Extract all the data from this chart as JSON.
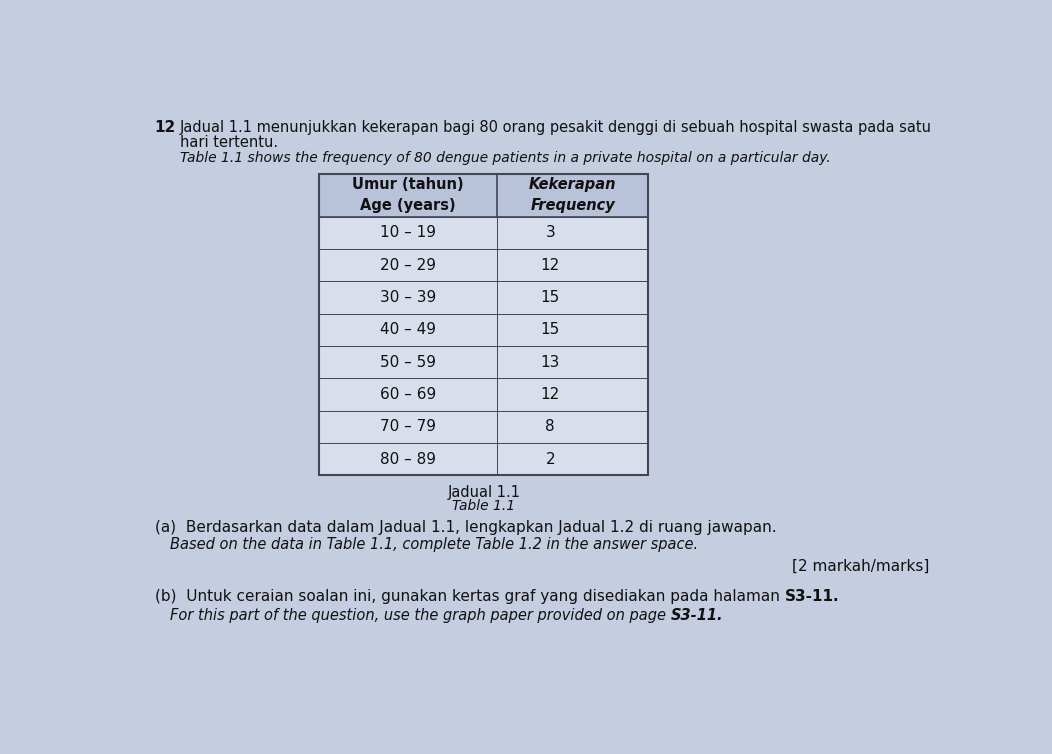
{
  "question_number": "12",
  "intro_text_line1": "Jadual 1.1 menunjukkan kekerapan bagi 80 orang pesakit denggi di sebuah hospital swasta pada satu",
  "intro_text_line2": "hari tertentu.",
  "intro_text_italic": "Table 1.1 shows the frequency of 80 dengue patients in a private hospital on a particular day.",
  "col1_header_line1": "Umur (tahun)",
  "col1_header_line2": "Age (years)",
  "col2_header_line1": "Kekerapan",
  "col2_header_line2": "Frequency",
  "age_groups": [
    "10 – 19",
    "20 – 29",
    "30 – 39",
    "40 – 49",
    "50 – 59",
    "60 – 69",
    "70 – 79",
    "80 – 89"
  ],
  "frequencies": [
    "3",
    "12",
    "15",
    "15",
    "13",
    "12",
    "8",
    "2"
  ],
  "table_caption_malay": "Jadual 1.1",
  "table_caption_english": "Table 1.1",
  "part_a_malay": "(a)  Berdasarkan data dalam Jadual 1.1, lengkapkan Jadual 1.2 di ruang jawapan.",
  "part_a_english": "Based on the data in Table 1.1, complete Table 1.2 in the answer space.",
  "marks_text": "[2 markah/marks]",
  "part_b_malay_pre": "(b)  Untuk ceraian soalan ini, gunakan kertas graf yang disediakan pada halaman ",
  "part_b_malay_bold": "S3-11",
  "part_b_malay_end": ".",
  "part_b_english_pre": "For this part of the question, use the graph paper provided on page ",
  "part_b_english_bold": "S3-11",
  "part_b_english_end": ".",
  "bg_color": "#c5cde0",
  "table_header_bg": "#b8c2d8",
  "table_data_bg": "#d8deec",
  "border_color": "#444455",
  "text_color": "#111111"
}
